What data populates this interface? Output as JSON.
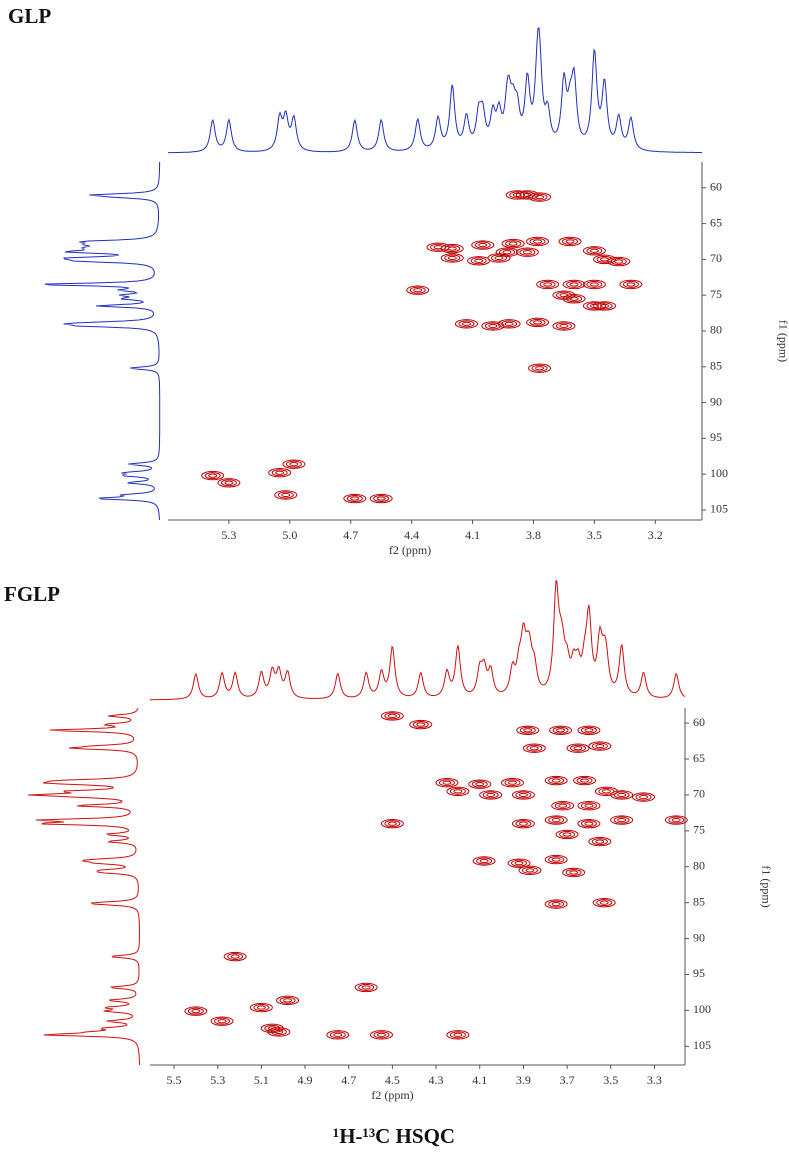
{
  "chart_data": [
    {
      "type": "scatter",
      "title": "GLP",
      "x_label": "f2 (ppm)",
      "y_label": "f1 (ppm)",
      "color": "#c00000",
      "projection_color": "#1f2fbf",
      "xlim": [
        5.6,
        2.97
      ],
      "ylim": [
        56.4,
        106.4
      ],
      "xticks": [
        5.3,
        {
          "value": 5,
          "label": "5.0"
        },
        4.7,
        4.4,
        4.1,
        3.8,
        3.5,
        3.2
      ],
      "yticks": [
        60,
        65,
        70,
        75,
        80,
        85,
        90,
        95,
        100,
        105
      ],
      "x": [
        3.88,
        3.83,
        3.77,
        4.27,
        4.2,
        4.05,
        3.9,
        3.78,
        3.62,
        3.5,
        3.45,
        3.38,
        4.2,
        4.07,
        3.97,
        3.93,
        3.83,
        3.73,
        3.6,
        3.5,
        3.32,
        3.65,
        3.6,
        3.5,
        3.45,
        4.37,
        4.13,
        4.0,
        3.92,
        3.78,
        3.65,
        3.77,
        5.38,
        5.3,
        5.05,
        4.98,
        5.02,
        4.68,
        4.55
      ],
      "values": [
        61,
        61,
        61.3,
        68.3,
        68.5,
        68,
        67.8,
        67.5,
        67.5,
        68.8,
        70,
        70.3,
        69.8,
        70.2,
        69.8,
        69,
        69,
        73.5,
        73.5,
        73.5,
        73.5,
        75,
        75.5,
        76.5,
        76.5,
        74.3,
        79,
        79.3,
        79,
        78.8,
        79.3,
        85.2,
        100.2,
        101.2,
        99.8,
        98.6,
        102.9,
        103.4,
        103.4
      ]
    },
    {
      "type": "scatter",
      "title": "FGLP",
      "x_label": "f2 (ppm)",
      "y_label": "f1 (ppm)",
      "color": "#c00000",
      "projection_color": "#d01010",
      "xlim": [
        5.61,
        3.16
      ],
      "ylim": [
        57.9,
        107.6
      ],
      "xticks": [
        5.5,
        5.3,
        5.1,
        4.9,
        4.7,
        4.5,
        4.3,
        4.1,
        3.9,
        3.7,
        3.5,
        3.3
      ],
      "yticks": [
        60,
        65,
        70,
        75,
        80,
        85,
        90,
        95,
        100,
        105
      ],
      "x": [
        3.88,
        3.73,
        3.6,
        3.85,
        3.65,
        3.55,
        4.5,
        4.37,
        4.25,
        4.1,
        3.95,
        3.75,
        3.62,
        3.52,
        3.45,
        3.35,
        4.2,
        4.05,
        3.9,
        3.72,
        3.6,
        3.75,
        3.6,
        3.45,
        3.2,
        3.7,
        3.55,
        3.9,
        4.08,
        3.92,
        3.87,
        3.75,
        3.67,
        3.75,
        3.53,
        5.22,
        4.62,
        5.4,
        5.28,
        5.1,
        4.98,
        5.05,
        5.02,
        4.75,
        4.55,
        4.2,
        4.5
      ],
      "values": [
        61,
        61,
        61,
        63.5,
        63.5,
        63.2,
        59,
        60.2,
        68.3,
        68.5,
        68.3,
        68,
        68,
        69.5,
        70,
        70.3,
        69.5,
        70,
        70,
        71.5,
        71.5,
        73.5,
        74,
        73.5,
        73.5,
        75.5,
        76.5,
        74,
        79.2,
        79.5,
        80.5,
        79,
        80.8,
        85.2,
        85,
        92.5,
        96.8,
        100.1,
        101.5,
        99.6,
        98.6,
        102.5,
        103,
        103.4,
        103.4,
        103.4,
        74
      ]
    }
  ],
  "figure_caption": "¹H-¹³C HSQC"
}
